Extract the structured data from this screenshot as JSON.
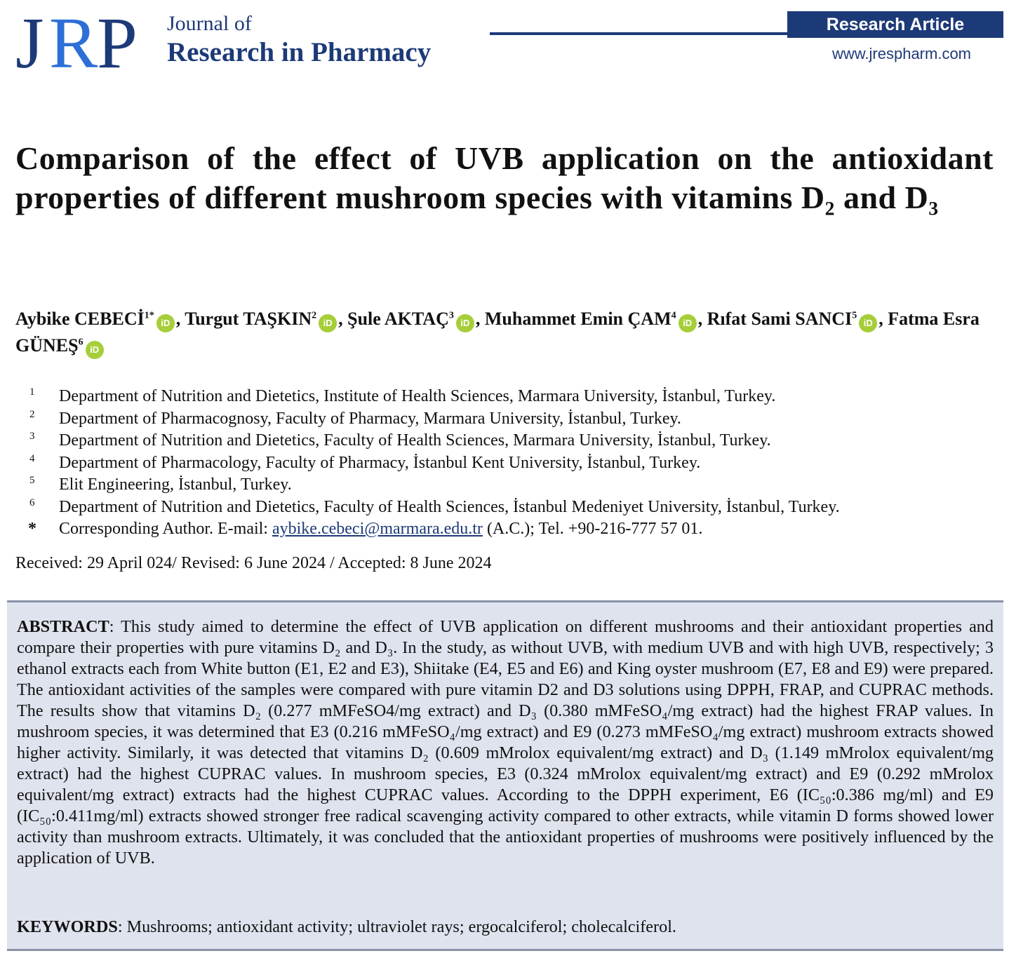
{
  "header": {
    "logo_text": "JRP",
    "journal_top": "Journal of",
    "journal_main": "Research in Pharmacy",
    "badge": "Research Article",
    "website": "www.jrespharm.com"
  },
  "title": "Comparison of the effect of UVB application on the antioxidant properties of different mushroom species with vitamins D₂ and D₃",
  "authors": [
    {
      "name": "Aybike CEBECİ",
      "sup": "1*",
      "sep": ", "
    },
    {
      "name": "Turgut TAŞKIN",
      "sup": "2",
      "sep": ", "
    },
    {
      "name": "Şule AKTAÇ",
      "sup": "3",
      "sep": ", "
    },
    {
      "name": "Muhammet Emin ÇAM",
      "sup": "4",
      "sep": ", "
    },
    {
      "name": "Rıfat Sami SANCI",
      "sup": "5",
      "sep": ", "
    },
    {
      "name": "Fatma Esra GÜNEŞ",
      "sup": "6",
      "sep": ""
    }
  ],
  "orcid_label": "iD",
  "affiliations": [
    {
      "num": "1",
      "text": "Department of Nutrition and Dietetics, Institute of Health Sciences, Marmara University, İstanbul, Turkey."
    },
    {
      "num": "2",
      "text": "Department of Pharmacognosy, Faculty of Pharmacy, Marmara University, İstanbul, Turkey."
    },
    {
      "num": "3",
      "text": "Department of Nutrition and Dietetics, Faculty of Health Sciences, Marmara University, İstanbul, Turkey."
    },
    {
      "num": "4",
      "text": "Department of Pharmacology, Faculty of Pharmacy, İstanbul Kent University, İstanbul, Turkey."
    },
    {
      "num": "5",
      "text": "Elit Engineering, İstanbul, Turkey."
    },
    {
      "num": "6",
      "text": "Department of Nutrition and Dietetics, Faculty of Health Sciences, İstanbul Medeniyet University, İstanbul, Turkey."
    }
  ],
  "corresponding": {
    "star": "*",
    "prefix": "Corresponding Author. E-mail: ",
    "email": "aybike.cebeci@marmara.edu.tr",
    "suffix": " (A.C.); Tel. +90-216-777 57 01."
  },
  "dates": "Received: 29 April 024/ Revised: 6 June 2024 / Accepted: 8 June 2024",
  "abstract": {
    "label": "ABSTRACT",
    "text": ": This study aimed to determine the effect of UVB application on different mushrooms and their antioxidant properties and compare their properties with pure vitamins D₂ and D₃. In the study, as without UVB, with medium UVB and with high UVB, respectively; 3 ethanol extracts each from White button (E1, E2 and E3), Shiitake (E4, E5 and E6) and King oyster mushroom (E7, E8 and E9) were prepared. The antioxidant activities of the samples were compared with pure vitamin D2 and D3 solutions using DPPH, FRAP, and CUPRAC methods. The results show that vitamins D₂ (0.277 mMFeSO4/mg extract) and D₃ (0.380 mMFeSO₄/mg extract) had the highest FRAP values. In mushroom species, it was determined that E3 (0.216 mMFeSO₄/mg extract) and E9 (0.273 mMFeSO₄/mg extract) mushroom extracts showed higher activity. Similarly, it was detected that vitamins D₂ (0.609 mMrolox equivalent/mg extract) and D₃ (1.149 mMrolox equivalent/mg extract) had the highest CUPRAC values. In mushroom species, E3 (0.324 mMrolox equivalent/mg extract) and E9 (0.292 mMrolox equivalent/mg extract) extracts had the highest CUPRAC values. According to the DPPH experiment, E6 (IC₅₀:0.386 mg/ml) and E9 (IC₅₀:0.411mg/ml) extracts showed stronger free radical scavenging activity compared to other extracts, while vitamin D forms showed lower activity than mushroom extracts. Ultimately, it was concluded that the antioxidant properties of mushrooms were positively influenced by the application of UVB."
  },
  "keywords": {
    "label": "KEYWORDS",
    "text": ": Mushrooms; antioxidant activity; ultraviolet rays; ergocalciferol; cholecalciferol."
  },
  "colors": {
    "brand_navy": "#1d3a78",
    "logo_blue": "#2d6fd6",
    "orcid_green": "#a6ce39",
    "abstract_bg": "#dfe3ee"
  }
}
